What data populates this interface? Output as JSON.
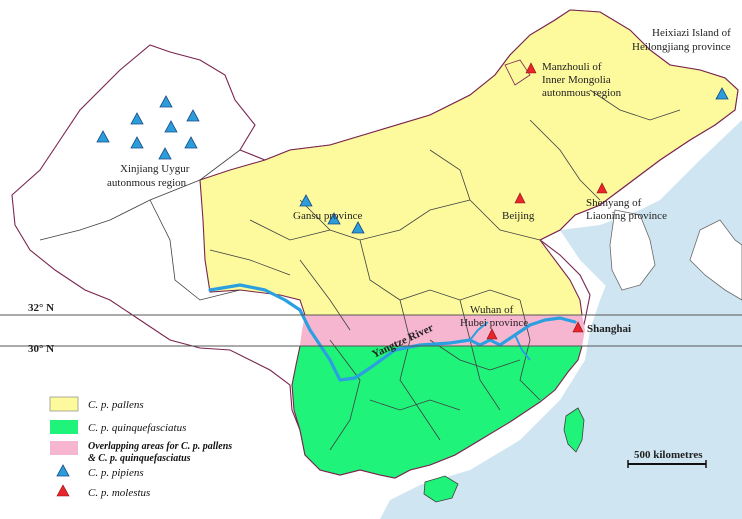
{
  "colors": {
    "sea": "#cfe6f2",
    "land": "#ffffff",
    "pallens": "#fcfa9d",
    "quinquefasciatus": "#1ff37a",
    "overlap": "#f7b6cf",
    "border": "#7a2550",
    "province": "#404040",
    "river": "#2aa0e0",
    "pipiens_marker": "#2b9ed9",
    "molestus_marker": "#e8262c"
  },
  "latitudes": {
    "lat32": "32° N",
    "lat30": "30° N"
  },
  "labels": {
    "xinjiang": [
      "Xinjiang Uygur",
      "autonmous region"
    ],
    "gansu": "Gansu province",
    "beijing": "Beijing",
    "shenyang": [
      "Shenyang of",
      "Liaoning province"
    ],
    "manzhouli": [
      "Manzhouli of",
      "Inner Mongolia",
      "autonmous region"
    ],
    "heixiazi": [
      "Heixiazi Island of",
      "Heilongjiang province"
    ],
    "wuhan": [
      "Wuhan of",
      "Hubei province"
    ],
    "shanghai": "Shanghai",
    "yangtze": "Yangtze River"
  },
  "legend": {
    "pallens": "C. p. pallens",
    "quinquefasciatus": "C. p. quinquefasciatus",
    "overlap_line1": "Overlapping areas for C. p. pallens",
    "overlap_line2": "& C. p. quinquefasciatus",
    "pipiens": "C. p. pipiens",
    "molestus": "C. p. molestus"
  },
  "scale_bar": "500 kilometres"
}
